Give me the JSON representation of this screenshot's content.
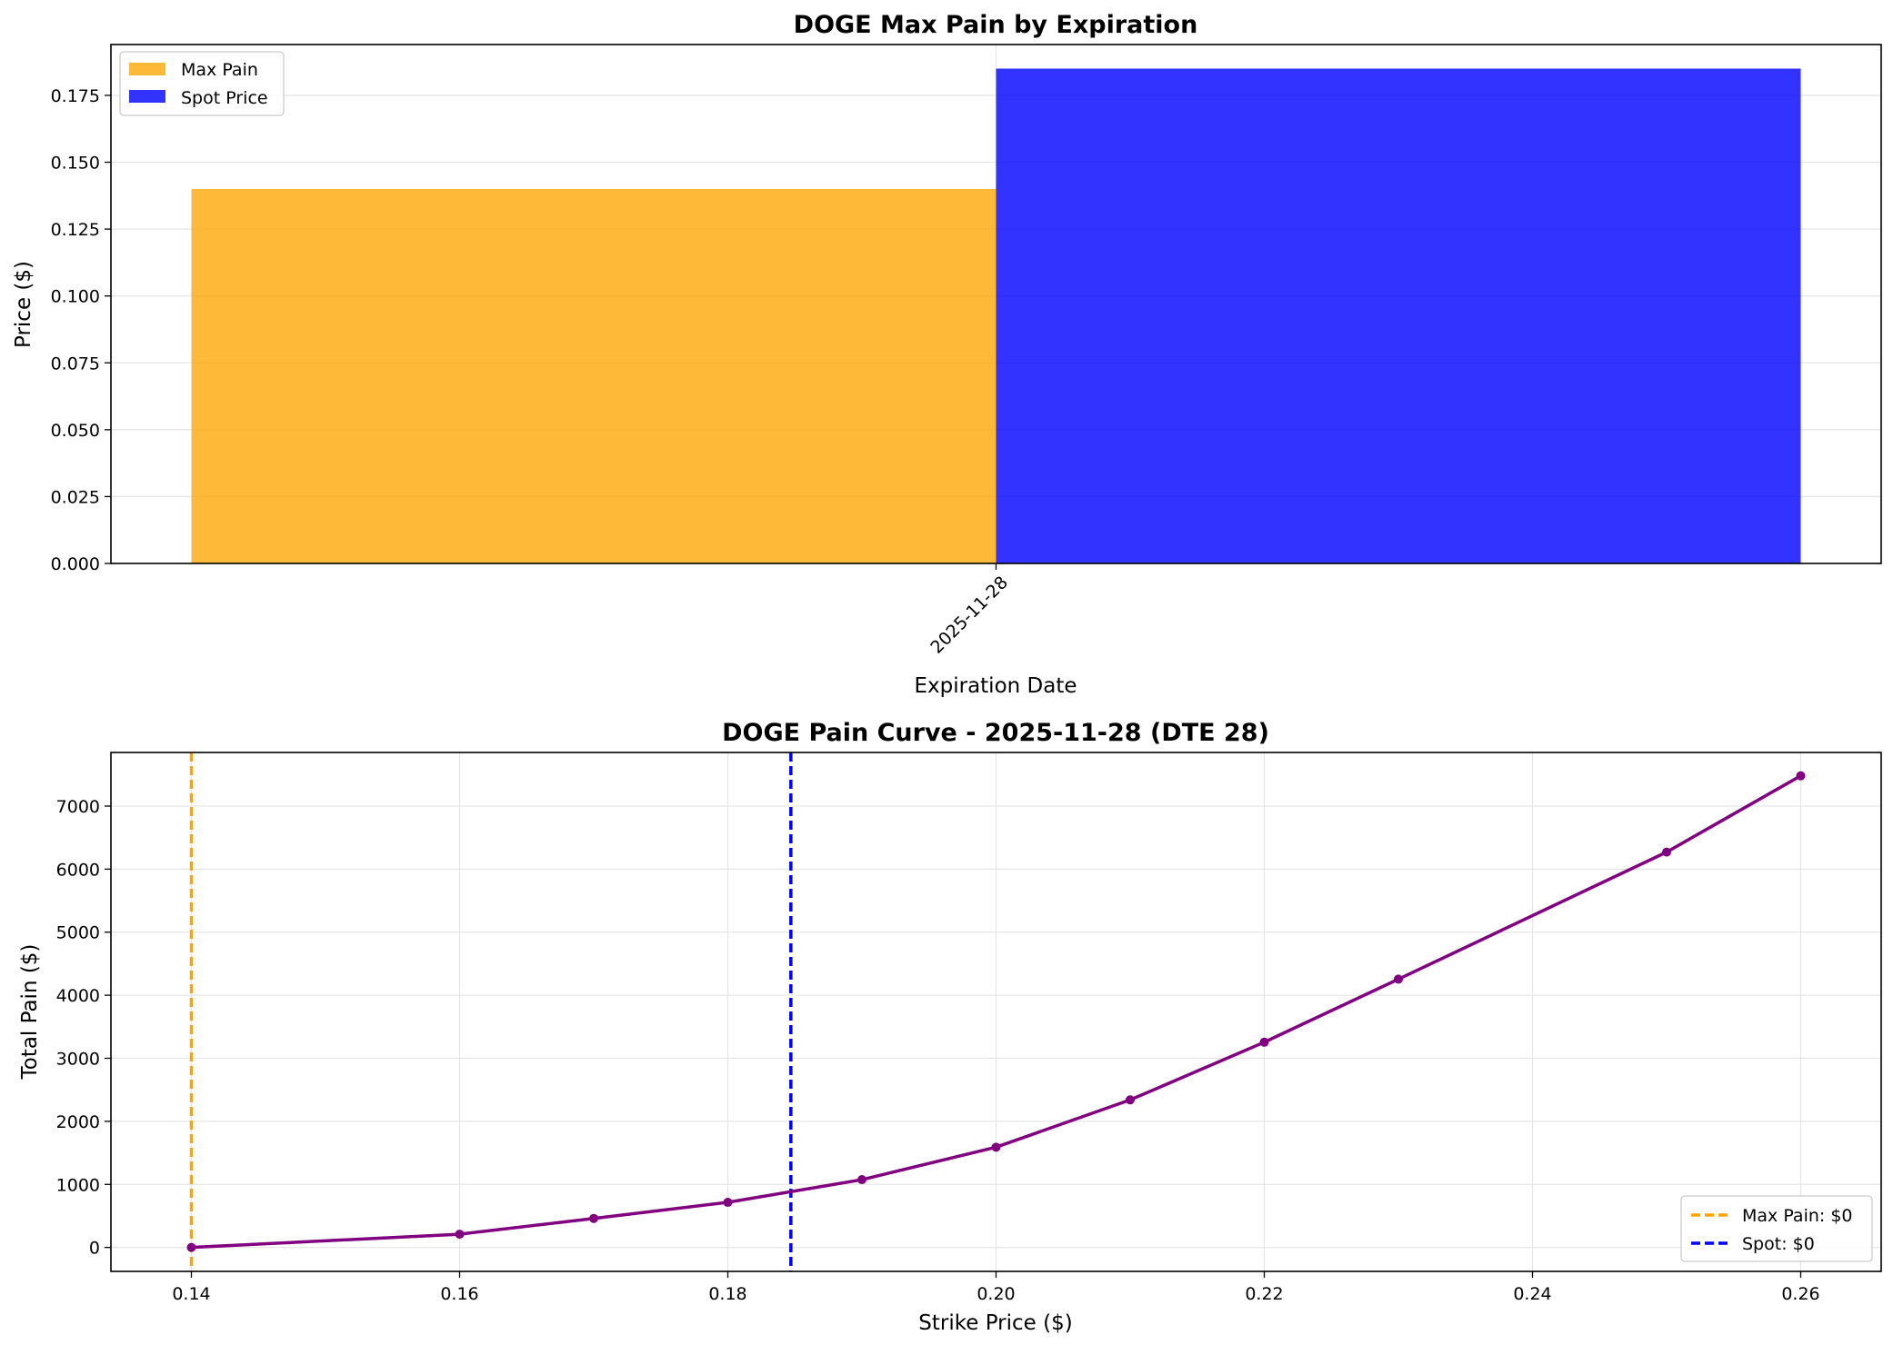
{
  "chart_data": [
    {
      "type": "bar",
      "title": "DOGE Max Pain by Expiration",
      "xlabel": "Expiration Date",
      "ylabel": "Price ($)",
      "categories": [
        "2025-11-28"
      ],
      "series": [
        {
          "name": "Max Pain",
          "values": [
            0.14
          ],
          "color": "#FFA500"
        },
        {
          "name": "Spot Price",
          "values": [
            0.185
          ],
          "color": "#0000FF"
        }
      ],
      "ylim": [
        0,
        0.194
      ],
      "yticks": [
        0.0,
        0.025,
        0.05,
        0.075,
        0.1,
        0.125,
        0.15,
        0.175
      ],
      "ytick_labels": [
        "0.000",
        "0.025",
        "0.050",
        "0.075",
        "0.100",
        "0.125",
        "0.150",
        "0.175"
      ],
      "grid": true,
      "legend": "top-left"
    },
    {
      "type": "line",
      "title": "DOGE Pain Curve - 2025-11-28 (DTE 28)",
      "xlabel": "Strike Price ($)",
      "ylabel": "Total Pain ($)",
      "x": [
        0.14,
        0.16,
        0.17,
        0.18,
        0.19,
        0.2,
        0.21,
        0.22,
        0.23,
        0.25,
        0.26
      ],
      "series": [
        {
          "values": [
            0,
            210,
            460,
            715,
            1075,
            1590,
            2340,
            3255,
            4255,
            6270,
            7480
          ],
          "color": "#800080"
        }
      ],
      "vlines": [
        {
          "name": "Max Pain: $0",
          "x": 0.14,
          "color": "#FFA500"
        },
        {
          "name": "Spot: $0",
          "x": 0.1847,
          "color": "#0000FF"
        }
      ],
      "xlim": [
        0.134,
        0.266
      ],
      "ylim": [
        -380,
        7850
      ],
      "xticks": [
        0.14,
        0.16,
        0.18,
        0.2,
        0.22,
        0.24,
        0.26
      ],
      "xtick_labels": [
        "0.14",
        "0.16",
        "0.18",
        "0.20",
        "0.22",
        "0.24",
        "0.26"
      ],
      "yticks": [
        0,
        1000,
        2000,
        3000,
        4000,
        5000,
        6000,
        7000
      ],
      "ytick_labels": [
        "0",
        "1000",
        "2000",
        "3000",
        "4000",
        "5000",
        "6000",
        "7000"
      ],
      "grid": true,
      "legend": "bottom-right"
    }
  ]
}
